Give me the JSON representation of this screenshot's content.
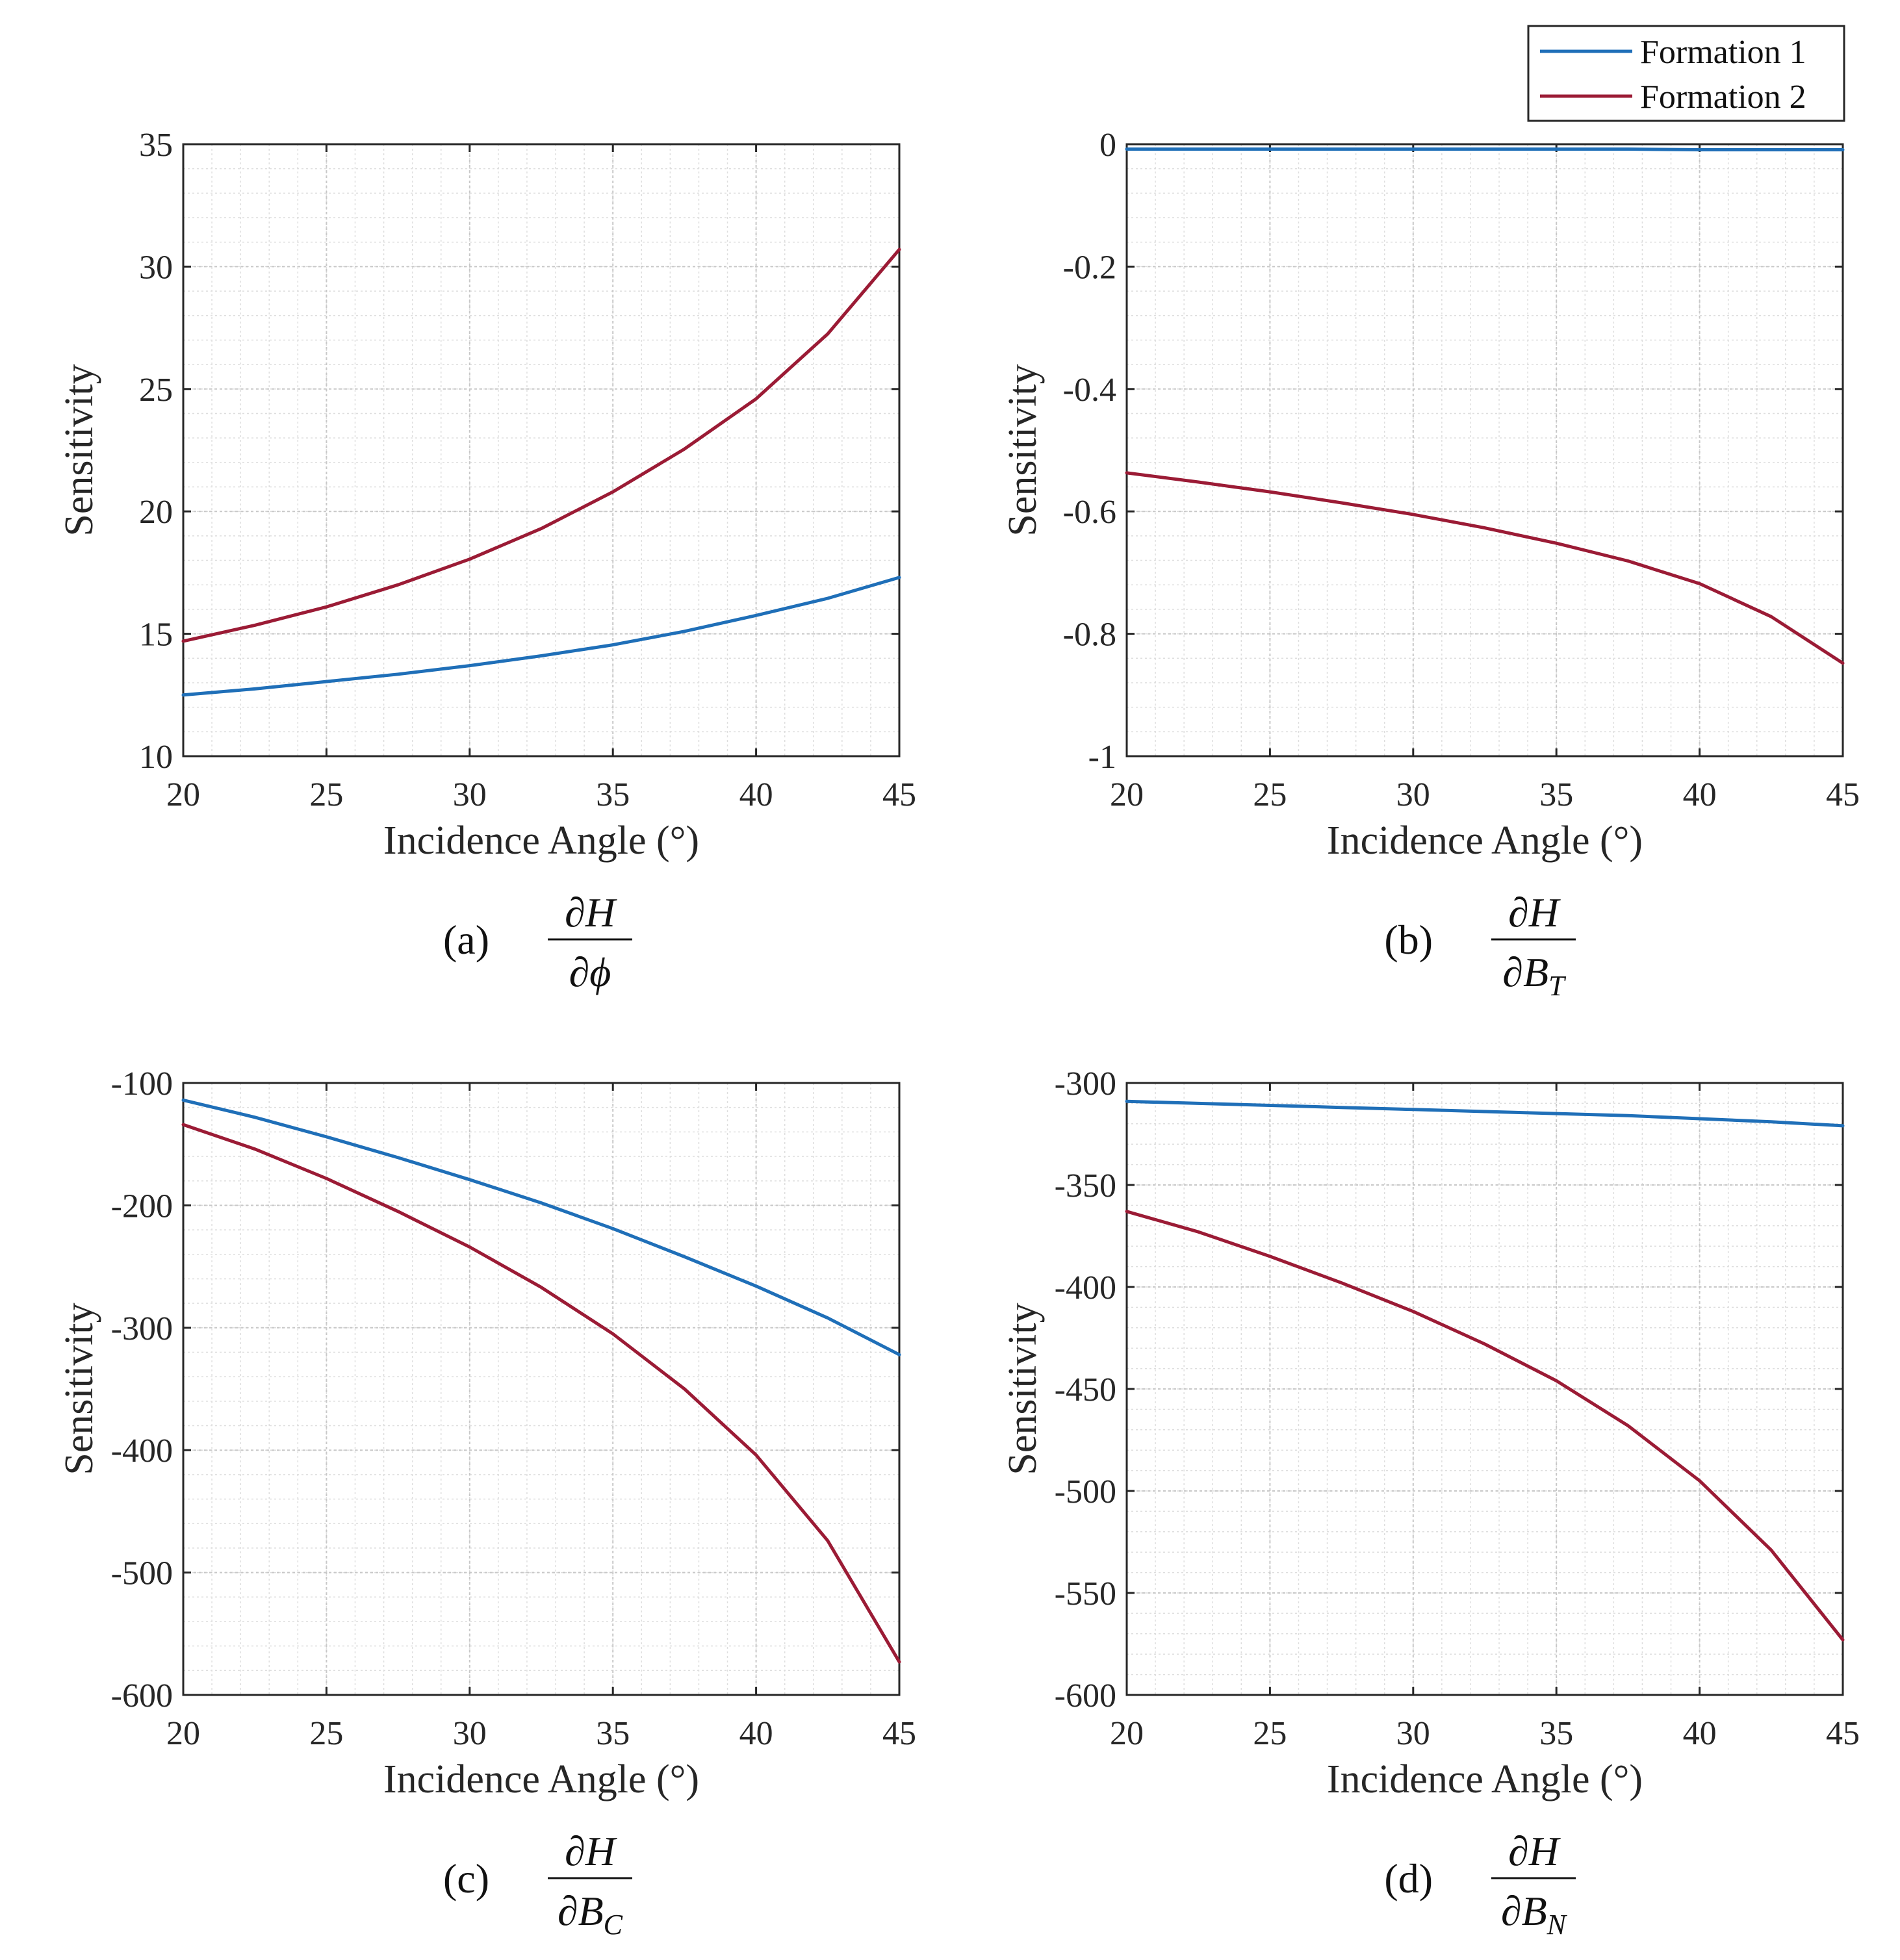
{
  "colors": {
    "formation1": "#1f6fb8",
    "formation2": "#9b1b35",
    "axis": "#262626",
    "grid_major": "#c8c8c8",
    "grid_minor": "#dedede"
  },
  "legend": {
    "entries": [
      "Formation 1",
      "Formation 2"
    ],
    "placement": "top-right"
  },
  "chart_data": [
    {
      "id": "a",
      "type": "line",
      "caption_label": "(a)",
      "caption_num": "∂H",
      "caption_den": "∂ϕ",
      "caption_den_sub": "",
      "xlabel": "Incidence Angle (°)",
      "ylabel": "Sensitivity",
      "xlim": [
        20,
        45
      ],
      "ylim": [
        10,
        35
      ],
      "xticks": [
        20,
        25,
        30,
        35,
        40,
        45
      ],
      "yticks": [
        10,
        15,
        20,
        25,
        30,
        35
      ],
      "ytick_labels": [
        "10",
        "15",
        "20",
        "25",
        "30",
        "35"
      ],
      "x": [
        20,
        22.5,
        25,
        27.5,
        30,
        32.5,
        35,
        37.5,
        40,
        42.5,
        45
      ],
      "series": [
        {
          "name": "Formation 1",
          "values": [
            12.5,
            12.75,
            13.05,
            13.35,
            13.7,
            14.1,
            14.55,
            15.1,
            15.75,
            16.45,
            17.3
          ]
        },
        {
          "name": "Formation 2",
          "values": [
            14.7,
            15.35,
            16.1,
            17.0,
            18.05,
            19.3,
            20.8,
            22.55,
            24.6,
            27.25,
            30.7
          ]
        }
      ],
      "grid": true
    },
    {
      "id": "b",
      "type": "line",
      "caption_label": "(b)",
      "caption_num": "∂H",
      "caption_den": "∂B",
      "caption_den_sub": "T",
      "xlabel": "Incidence Angle (°)",
      "ylabel": "Sensitivity",
      "xlim": [
        20,
        45
      ],
      "ylim": [
        -1,
        0
      ],
      "xticks": [
        20,
        25,
        30,
        35,
        40,
        45
      ],
      "yticks": [
        -1,
        -0.8,
        -0.6,
        -0.4,
        -0.2,
        0
      ],
      "ytick_labels": [
        "-1",
        "-0.8",
        "-0.6",
        "-0.4",
        "-0.2",
        "0"
      ],
      "x": [
        20,
        22.5,
        25,
        27.5,
        30,
        32.5,
        35,
        37.5,
        40,
        42.5,
        45
      ],
      "series": [
        {
          "name": "Formation 1",
          "values": [
            -0.008,
            -0.008,
            -0.008,
            -0.008,
            -0.008,
            -0.008,
            -0.008,
            -0.008,
            -0.009,
            -0.009,
            -0.009
          ]
        },
        {
          "name": "Formation 2",
          "values": [
            -0.537,
            -0.552,
            -0.568,
            -0.586,
            -0.605,
            -0.627,
            -0.652,
            -0.681,
            -0.718,
            -0.772,
            -0.848
          ]
        }
      ],
      "grid": true
    },
    {
      "id": "c",
      "type": "line",
      "caption_label": "(c)",
      "caption_num": "∂H",
      "caption_den": "∂B",
      "caption_den_sub": "C",
      "xlabel": "Incidence Angle (°)",
      "ylabel": "Sensitivity",
      "xlim": [
        20,
        45
      ],
      "ylim": [
        -600,
        -100
      ],
      "xticks": [
        20,
        25,
        30,
        35,
        40,
        45
      ],
      "yticks": [
        -600,
        -500,
        -400,
        -300,
        -200,
        -100
      ],
      "ytick_labels": [
        "-600",
        "-500",
        "-400",
        "-300",
        "-200",
        "-100"
      ],
      "x": [
        20,
        22.5,
        25,
        27.5,
        30,
        32.5,
        35,
        37.5,
        40,
        42.5,
        45
      ],
      "series": [
        {
          "name": "Formation 1",
          "values": [
            -114,
            -128,
            -144,
            -161,
            -179,
            -198,
            -219,
            -242,
            -266,
            -292,
            -322
          ]
        },
        {
          "name": "Formation 2",
          "values": [
            -134,
            -154,
            -178,
            -205,
            -234,
            -267,
            -305,
            -350,
            -404,
            -474,
            -573
          ]
        }
      ],
      "grid": true
    },
    {
      "id": "d",
      "type": "line",
      "caption_label": "(d)",
      "caption_num": "∂H",
      "caption_den": "∂B",
      "caption_den_sub": "N",
      "xlabel": "Incidence Angle (°)",
      "ylabel": "Sensitivity",
      "xlim": [
        20,
        45
      ],
      "ylim": [
        -600,
        -300
      ],
      "xticks": [
        20,
        25,
        30,
        35,
        40,
        45
      ],
      "yticks": [
        -600,
        -550,
        -500,
        -450,
        -400,
        -350,
        -300
      ],
      "ytick_labels": [
        "-600",
        "-550",
        "-500",
        "-450",
        "-400",
        "-350",
        "-300"
      ],
      "x": [
        20,
        22.5,
        25,
        27.5,
        30,
        32.5,
        35,
        37.5,
        40,
        42.5,
        45
      ],
      "series": [
        {
          "name": "Formation 1",
          "values": [
            -309,
            -310,
            -311,
            -312,
            -313,
            -314,
            -315,
            -316,
            -317.5,
            -319,
            -321
          ]
        },
        {
          "name": "Formation 2",
          "values": [
            -363,
            -373,
            -385,
            -398,
            -412,
            -428,
            -446,
            -468,
            -495,
            -529,
            -573
          ]
        }
      ],
      "grid": true
    }
  ]
}
